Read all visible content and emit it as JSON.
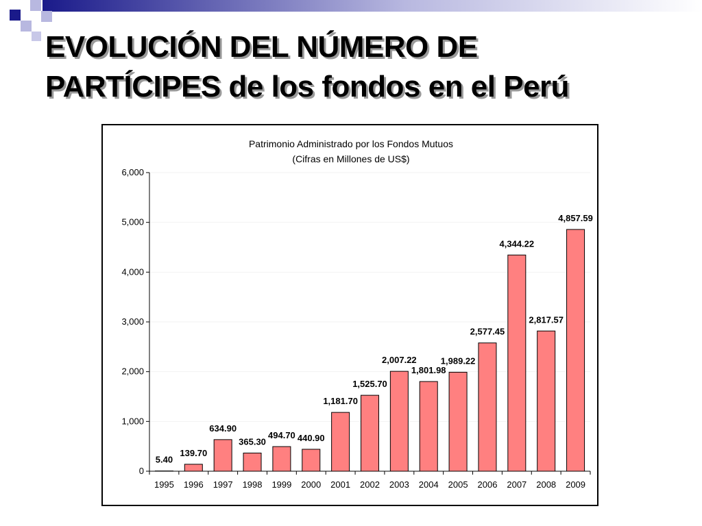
{
  "slide": {
    "title_line1": "EVOLUCIÓN DEL NÚMERO DE",
    "title_line2": "PARTÍCIPES de los fondos en el Perú"
  },
  "colors": {
    "bar_fill": "#ff8080",
    "bar_stroke": "#000000",
    "deco_dark": "#1a1a8a",
    "deco_light": "#b8b8e0"
  },
  "chart_data": {
    "type": "bar",
    "title": "Patrimonio Administrado por los Fondos Mutuos",
    "subtitle": "(Cifras en Millones de US$)",
    "xlabel": "",
    "ylabel": "",
    "ylim": [
      0,
      6000
    ],
    "yticks": [
      0,
      1000,
      2000,
      3000,
      4000,
      5000,
      6000
    ],
    "ytick_labels": [
      "0",
      "1,000",
      "2,000",
      "3,000",
      "4,000",
      "5,000",
      "6,000"
    ],
    "grid": true,
    "legend": "none",
    "categories": [
      "1995",
      "1996",
      "1997",
      "1998",
      "1999",
      "2000",
      "2001",
      "2002",
      "2003",
      "2004",
      "2005",
      "2006",
      "2007",
      "2008",
      "2009"
    ],
    "values": [
      5.4,
      139.7,
      634.9,
      365.3,
      494.7,
      440.9,
      1181.7,
      1525.7,
      2007.22,
      1801.98,
      1989.22,
      2577.45,
      4344.22,
      2817.57,
      4857.59
    ],
    "data_labels": [
      "5.40",
      "139.70",
      "634.90",
      "365.30",
      "494.70",
      "440.90",
      "1,181.70",
      "1,525.70",
      "2,007.22",
      "1,801.98",
      "1,989.22",
      "2,577.45",
      "4,344.22",
      "2,817.57",
      "4,857.59"
    ]
  }
}
